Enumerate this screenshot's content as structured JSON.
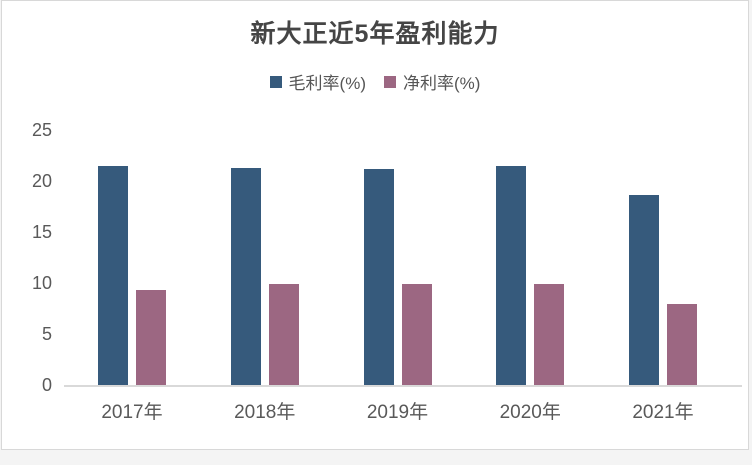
{
  "chart_data": {
    "type": "bar",
    "title": "新大正近5年盈利能力",
    "categories": [
      "2017年",
      "2018年",
      "2019年",
      "2020年",
      "2021年"
    ],
    "series": [
      {
        "name": "毛利率(%)",
        "color": "#365A7C",
        "values": [
          21.4,
          21.2,
          21.1,
          21.4,
          18.6
        ]
      },
      {
        "name": "净利率(%)",
        "color": "#9C6782",
        "values": [
          9.3,
          9.9,
          9.9,
          9.9,
          7.9
        ]
      }
    ],
    "ylabel": "",
    "xlabel": "",
    "ylim": [
      0,
      25
    ],
    "yticks": [
      0,
      5,
      10,
      15,
      20,
      25
    ],
    "grid": false,
    "legend_position": "top",
    "colors": {
      "title_text": "#454545",
      "axis_text": "#595959",
      "axis_line": "#d9d9d9",
      "card_border": "#d8d8d8",
      "card_background": "#ffffff"
    }
  }
}
